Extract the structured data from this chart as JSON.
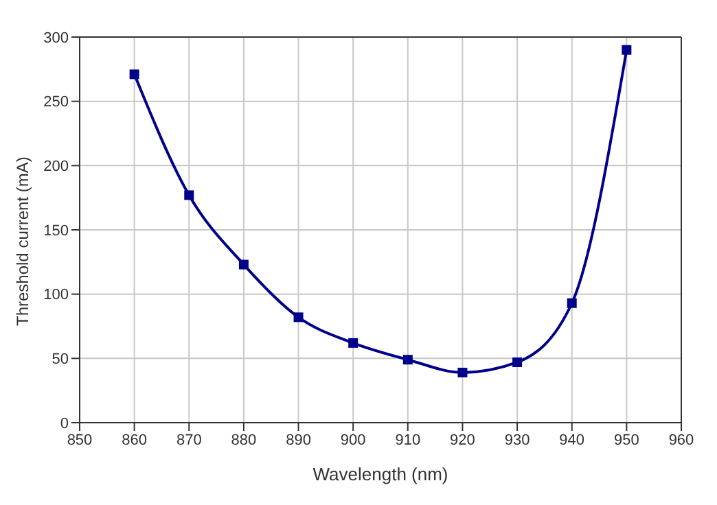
{
  "chart_data": {
    "type": "line",
    "xlabel": "Wavelength (nm)",
    "ylabel": "Threshold current (mA)",
    "x": [
      860,
      870,
      880,
      890,
      900,
      910,
      920,
      930,
      940,
      950
    ],
    "series": [
      {
        "color": "#00008b",
        "values": [
          271,
          177,
          123,
          82,
          62,
          49,
          39,
          47,
          93,
          290
        ]
      }
    ],
    "xlim": [
      850,
      960
    ],
    "xticks": [
      850,
      860,
      870,
      880,
      890,
      900,
      910,
      920,
      930,
      940,
      950,
      960
    ],
    "ylim": [
      0,
      300
    ],
    "yticks": [
      0,
      50,
      100,
      150,
      200,
      250,
      300
    ],
    "grid": true,
    "marker": "square",
    "line_style": "solid"
  }
}
